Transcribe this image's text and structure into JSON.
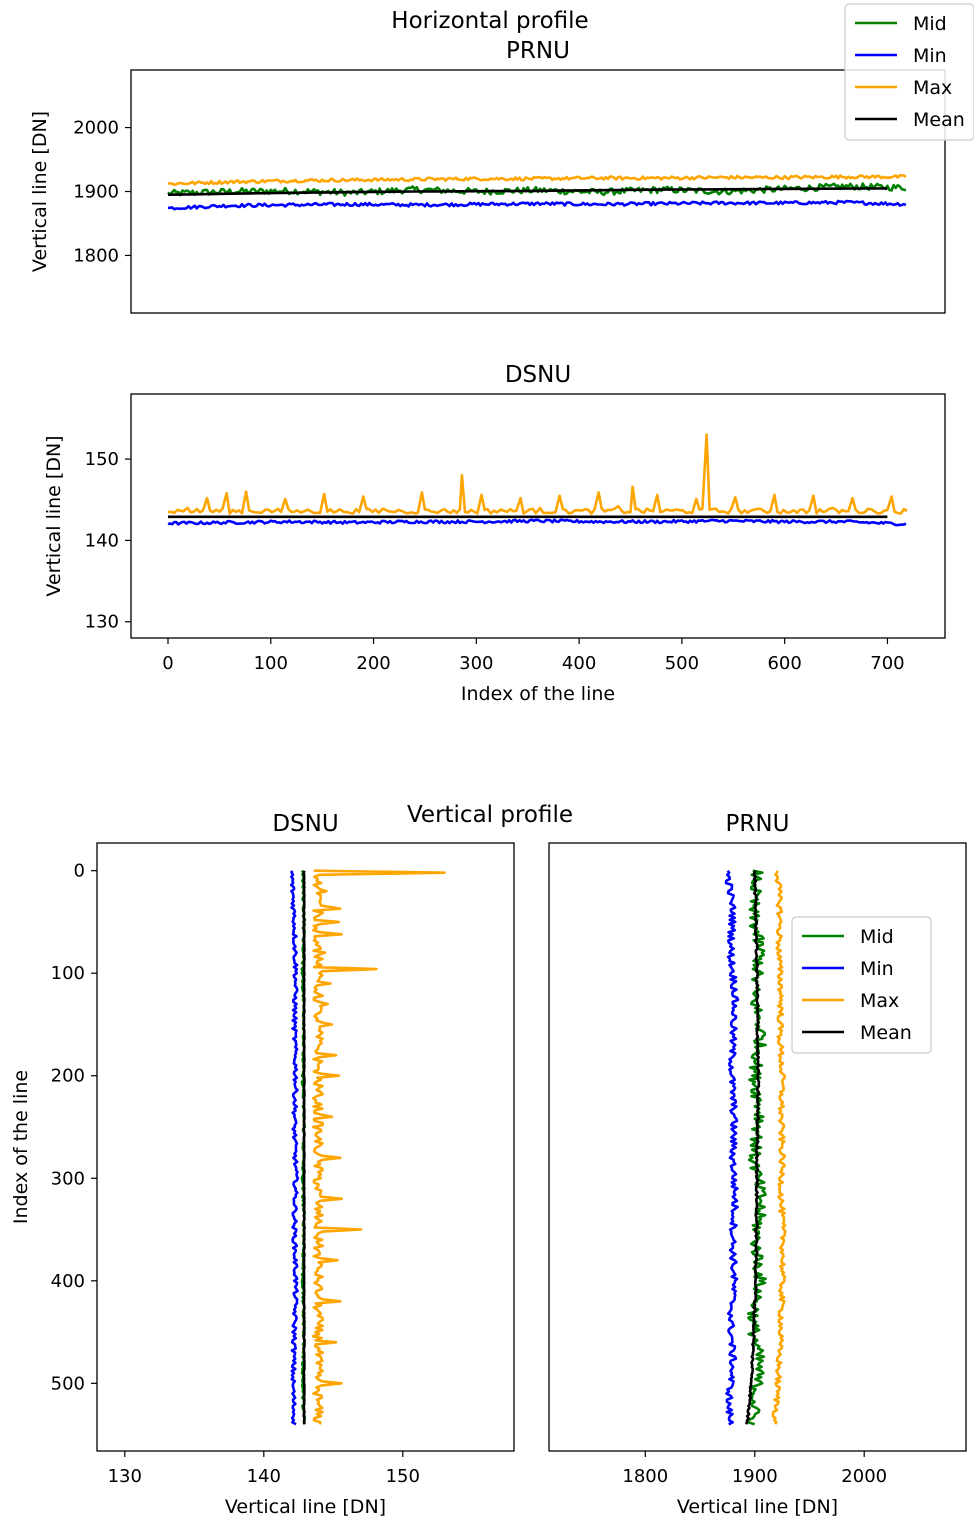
{
  "figure": {
    "top_title": "Horizontal profile",
    "bottom_title": "Vertical profile"
  },
  "legend": [
    "Mid",
    "Min",
    "Max",
    "Mean"
  ],
  "colors": {
    "Mid": "#008000",
    "Min": "#0000ff",
    "Max": "#ffa500",
    "Mean": "#000000"
  },
  "chart_data": [
    {
      "id": "h_prnu",
      "type": "line",
      "title": "PRNU",
      "xlabel": "",
      "ylabel": "Vertical line [DN]",
      "xlim": [
        -36,
        756
      ],
      "ylim": [
        1710,
        2090
      ],
      "yticks": [
        1800,
        1900,
        2000
      ],
      "legend_position": "outside upper right",
      "series": [
        {
          "name": "Mid",
          "x": [
            0,
            60,
            120,
            180,
            240,
            300,
            360,
            420,
            480,
            540,
            600,
            660,
            719
          ],
          "y": [
            1897,
            1900,
            1901,
            1898,
            1903,
            1900,
            1902,
            1899,
            1903,
            1900,
            1904,
            1908,
            1906
          ]
        },
        {
          "name": "Min",
          "x": [
            0,
            60,
            120,
            180,
            240,
            300,
            360,
            420,
            480,
            540,
            600,
            660,
            719
          ],
          "y": [
            1874,
            1878,
            1879,
            1880,
            1879,
            1880,
            1881,
            1880,
            1881,
            1882,
            1882,
            1883,
            1880
          ]
        },
        {
          "name": "Max",
          "x": [
            0,
            60,
            120,
            180,
            240,
            300,
            360,
            420,
            480,
            540,
            600,
            660,
            719
          ],
          "y": [
            1912,
            1915,
            1917,
            1918,
            1919,
            1920,
            1920,
            1921,
            1921,
            1922,
            1922,
            1923,
            1923
          ]
        },
        {
          "name": "Mean",
          "x": [
            0,
            120,
            240,
            360,
            480,
            600,
            719
          ],
          "y": [
            1895,
            1898,
            1900,
            1901,
            1903,
            1904,
            1905
          ]
        }
      ]
    },
    {
      "id": "h_dsnu",
      "type": "line",
      "title": "DSNU",
      "xlabel": "Index of the line",
      "ylabel": "Vertical line [DN]",
      "xlim": [
        -36,
        756
      ],
      "ylim": [
        128,
        158
      ],
      "xticks": [
        0,
        100,
        200,
        300,
        400,
        500,
        600,
        700
      ],
      "yticks": [
        130,
        140,
        150
      ],
      "series": [
        {
          "name": "Min",
          "x": [
            0,
            60,
            120,
            180,
            240,
            300,
            360,
            420,
            480,
            540,
            600,
            660,
            719
          ],
          "y": [
            142.1,
            142.2,
            142.3,
            142.2,
            142.3,
            142.3,
            142.4,
            142.3,
            142.3,
            142.4,
            142.3,
            142.3,
            142.0
          ]
        },
        {
          "name": "Mean",
          "x": [
            0,
            719
          ],
          "y": [
            142.9,
            142.9
          ]
        },
        {
          "name": "Max",
          "x": [
            0,
            19,
            38,
            57,
            76,
            95,
            114,
            133,
            152,
            171,
            190,
            209,
            228,
            247,
            266,
            286,
            305,
            324,
            343,
            362,
            381,
            400,
            419,
            438,
            452,
            457,
            476,
            495,
            514,
            524,
            533,
            552,
            571,
            590,
            609,
            628,
            647,
            666,
            685,
            704,
            719
          ],
          "y": [
            143.5,
            144.0,
            145.2,
            145.8,
            146.0,
            143.8,
            145.1,
            143.6,
            145.7,
            143.5,
            145.4,
            143.9,
            143.6,
            145.9,
            143.7,
            148.0,
            145.6,
            143.8,
            145.2,
            144.0,
            145.5,
            143.7,
            145.9,
            144.2,
            146.6,
            143.9,
            145.6,
            143.8,
            145.1,
            153.0,
            143.9,
            145.3,
            143.8,
            145.6,
            143.7,
            145.5,
            144.0,
            145.2,
            143.8,
            145.4,
            143.6
          ]
        }
      ]
    },
    {
      "id": "v_dsnu",
      "type": "line",
      "title": "DSNU",
      "xlabel": "Vertical line [DN]",
      "ylabel": "Index of the line",
      "xlim": [
        128,
        158
      ],
      "ylim": [
        566,
        -27
      ],
      "xticks": [
        130,
        140,
        150
      ],
      "yticks": [
        0,
        100,
        200,
        300,
        400,
        500
      ],
      "series": [
        {
          "name": "Min",
          "y": [
            0,
            50,
            100,
            150,
            200,
            250,
            300,
            350,
            400,
            450,
            500,
            540
          ],
          "x": [
            142.0,
            142.2,
            142.3,
            142.2,
            142.3,
            142.2,
            142.3,
            142.2,
            142.3,
            142.2,
            142.1,
            142.2
          ]
        },
        {
          "name": "Mid",
          "y": [
            0,
            50,
            100,
            150,
            200,
            250,
            300,
            350,
            400,
            450,
            500,
            540
          ],
          "x": [
            142.8,
            142.9,
            142.8,
            142.9,
            142.8,
            142.9,
            142.8,
            142.9,
            142.8,
            142.9,
            142.8,
            142.9
          ]
        },
        {
          "name": "Mean",
          "y": [
            0,
            540
          ],
          "x": [
            142.9,
            142.9
          ]
        },
        {
          "name": "Max",
          "y": [
            0,
            2,
            4,
            10,
            20,
            30,
            37,
            44,
            50,
            56,
            62,
            70,
            80,
            90,
            96,
            100,
            110,
            120,
            130,
            140,
            150,
            170,
            180,
            190,
            200,
            220,
            240,
            260,
            280,
            300,
            320,
            340,
            350,
            360,
            380,
            400,
            420,
            440,
            460,
            480,
            500,
            520,
            540
          ],
          "x": [
            143.6,
            153.0,
            144.0,
            143.8,
            144.5,
            144.0,
            145.5,
            143.9,
            145.4,
            143.8,
            145.6,
            143.9,
            144.4,
            143.8,
            148.1,
            144.0,
            144.8,
            143.9,
            144.6,
            143.8,
            144.9,
            144.0,
            145.2,
            143.9,
            145.4,
            143.8,
            144.9,
            143.9,
            145.5,
            144.1,
            145.6,
            143.9,
            147.0,
            144.2,
            145.3,
            143.9,
            145.5,
            144.0,
            145.2,
            143.8,
            145.6,
            143.9,
            144.0
          ]
        }
      ]
    },
    {
      "id": "v_prnu",
      "type": "line",
      "title": "PRNU",
      "xlabel": "Vertical line [DN]",
      "ylabel": "",
      "xlim": [
        1712,
        2093
      ],
      "ylim": [
        566,
        -27
      ],
      "xticks": [
        1800,
        1900,
        2000
      ],
      "legend_position": "upper right",
      "series": [
        {
          "name": "Min",
          "y": [
            0,
            40,
            80,
            120,
            160,
            200,
            240,
            280,
            320,
            360,
            400,
            440,
            480,
            520,
            540
          ],
          "x": [
            1875,
            1880,
            1878,
            1882,
            1880,
            1879,
            1881,
            1880,
            1882,
            1880,
            1881,
            1878,
            1880,
            1876,
            1878
          ]
        },
        {
          "name": "Mid",
          "y": [
            0,
            40,
            80,
            120,
            160,
            200,
            240,
            280,
            320,
            360,
            400,
            440,
            480,
            520,
            540
          ],
          "x": [
            1902,
            1898,
            1905,
            1899,
            1906,
            1900,
            1905,
            1899,
            1906,
            1901,
            1905,
            1898,
            1904,
            1900,
            1898
          ]
        },
        {
          "name": "Max",
          "y": [
            0,
            40,
            80,
            120,
            160,
            200,
            240,
            280,
            320,
            360,
            400,
            440,
            480,
            520,
            540
          ],
          "x": [
            1921,
            1923,
            1922,
            1924,
            1923,
            1925,
            1924,
            1925,
            1924,
            1926,
            1925,
            1924,
            1922,
            1920,
            1918
          ]
        },
        {
          "name": "Mean",
          "y": [
            0,
            100,
            200,
            300,
            400,
            500,
            540
          ],
          "x": [
            1900,
            1902,
            1903,
            1902,
            1901,
            1897,
            1893
          ]
        }
      ]
    }
  ]
}
